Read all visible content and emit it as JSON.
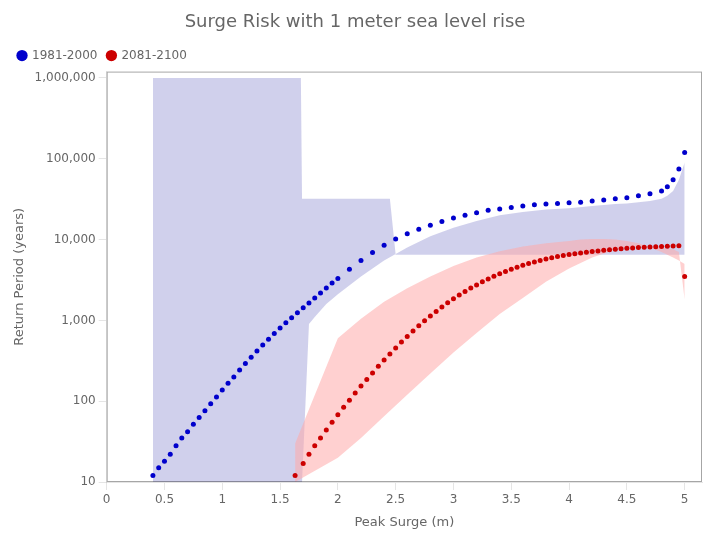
{
  "chart_data": {
    "type": "scatter",
    "title": "Surge Risk with 1 meter sea level rise",
    "x_label": "Peak Surge (m)",
    "y_label": "Return Period (years)",
    "log": "y",
    "grid": false,
    "legend": "upper left",
    "xlim": [
      0,
      5.15
    ],
    "ylim": [
      10,
      1200000
    ],
    "xticks": [
      0,
      0.5,
      1,
      1.5,
      2,
      2.5,
      3,
      3.5,
      4,
      4.5,
      5
    ],
    "yticks": [
      10,
      100,
      {
        "value": 1000,
        "label": "1,000"
      },
      {
        "value": 10000,
        "label": "10,000"
      },
      {
        "value": 100000,
        "label": "100,000"
      },
      {
        "value": 1000000,
        "label": "1,000,000"
      }
    ],
    "series": [
      {
        "name": "1981-2000",
        "color": "#0000CC",
        "marker": "dot",
        "x": [
          0.4,
          0.45,
          0.5,
          0.55,
          0.6,
          0.65,
          0.7,
          0.75,
          0.8,
          0.85,
          0.9,
          0.95,
          1.0,
          1.05,
          1.1,
          1.15,
          1.2,
          1.25,
          1.3,
          1.35,
          1.4,
          1.45,
          1.5,
          1.55,
          1.6,
          1.65,
          1.7,
          1.75,
          1.8,
          1.85,
          1.9,
          1.95,
          2.0,
          2.1,
          2.2,
          2.3,
          2.4,
          2.5,
          2.6,
          2.7,
          2.8,
          2.9,
          3.0,
          3.1,
          3.2,
          3.3,
          3.4,
          3.5,
          3.6,
          3.7,
          3.8,
          3.9,
          4.0,
          4.1,
          4.2,
          4.3,
          4.4,
          4.5,
          4.6,
          4.7,
          4.8,
          4.85,
          4.9,
          4.95,
          5.0
        ],
        "values": [
          12,
          15,
          18,
          22,
          28,
          35,
          42,
          52,
          63,
          76,
          93,
          113,
          138,
          167,
          200,
          244,
          293,
          350,
          418,
          495,
          585,
          688,
          805,
          935,
          1080,
          1240,
          1430,
          1640,
          1900,
          2190,
          2520,
          2900,
          3300,
          4300,
          5500,
          6900,
          8500,
          10200,
          11800,
          13400,
          15000,
          16800,
          18500,
          20000,
          21500,
          23000,
          24000,
          25000,
          26000,
          27000,
          27500,
          28000,
          28500,
          29000,
          30000,
          31000,
          32000,
          33000,
          35000,
          37000,
          40000,
          45000,
          55000,
          75000,
          120000
        ],
        "band": {
          "color": "#AAAADD",
          "upper": {
            "x": [
              0.4,
              1.68,
              1.69,
              1.75,
              2.45,
              2.5,
              2.55,
              3.0,
              4.5,
              4.6,
              4.65,
              4.7,
              4.75,
              4.8,
              4.85,
              4.9,
              4.95,
              5.0
            ],
            "values": [
              1000000,
              1000000,
              32000,
              32000,
              32000,
              6500,
              6500,
              6500,
              6500,
              6500,
              6500,
              6500,
              6500,
              6500,
              6500,
              6500,
              6500,
              6500
            ]
          },
          "lower": {
            "x": [
              0.4,
              1.68,
              1.69,
              1.75,
              1.8,
              1.9,
              2.0,
              2.2,
              2.4,
              2.6,
              2.8,
              3.0,
              3.2,
              3.4,
              3.6,
              3.8,
              4.0,
              4.2,
              4.4,
              4.5,
              4.6,
              4.7,
              4.8,
              4.85,
              4.9,
              4.95,
              5.0
            ],
            "values": [
              10,
              10,
              10,
              900,
              1100,
              1600,
              2100,
              3500,
              5500,
              8000,
              11000,
              14000,
              17000,
              20000,
              22000,
              23500,
              24500,
              26000,
              27500,
              28000,
              29000,
              30000,
              32000,
              35000,
              40000,
              55000,
              90000
            ]
          }
        }
      },
      {
        "name": "2081-2100",
        "color": "#CC0000",
        "marker": "dot",
        "x": [
          1.63,
          1.7,
          1.75,
          1.8,
          1.85,
          1.9,
          1.95,
          2.0,
          2.05,
          2.1,
          2.15,
          2.2,
          2.25,
          2.3,
          2.35,
          2.4,
          2.45,
          2.5,
          2.55,
          2.6,
          2.65,
          2.7,
          2.75,
          2.8,
          2.85,
          2.9,
          2.95,
          3.0,
          3.05,
          3.1,
          3.15,
          3.2,
          3.25,
          3.3,
          3.35,
          3.4,
          3.45,
          3.5,
          3.55,
          3.6,
          3.65,
          3.7,
          3.75,
          3.8,
          3.85,
          3.9,
          3.95,
          4.0,
          4.05,
          4.1,
          4.15,
          4.2,
          4.25,
          4.3,
          4.35,
          4.4,
          4.45,
          4.5,
          4.55,
          4.6,
          4.65,
          4.7,
          4.75,
          4.8,
          4.85,
          4.9,
          4.95,
          5.0
        ],
        "values": [
          12,
          17,
          22,
          28,
          35,
          44,
          55,
          68,
          84,
          103,
          126,
          154,
          186,
          224,
          270,
          323,
          385,
          457,
          540,
          634,
          740,
          858,
          990,
          1135,
          1293,
          1465,
          1650,
          1850,
          2060,
          2280,
          2510,
          2750,
          3000,
          3260,
          3520,
          3780,
          4040,
          4300,
          4560,
          4810,
          5060,
          5300,
          5530,
          5750,
          5960,
          6160,
          6350,
          6530,
          6700,
          6850,
          6990,
          7120,
          7250,
          7370,
          7490,
          7600,
          7700,
          7790,
          7880,
          7960,
          8030,
          8100,
          8160,
          8220,
          8280,
          8340,
          8400,
          3500
        ],
        "band": {
          "color": "#FFAAAA",
          "upper": {
            "x": [
              1.63,
              2.0,
              2.2,
              2.4,
              2.6,
              2.8,
              3.0,
              3.2,
              3.4,
              3.6,
              3.8,
              4.0,
              4.1,
              4.2,
              4.3,
              4.4,
              4.5,
              4.6,
              4.65,
              4.7,
              4.75,
              4.8,
              4.85,
              4.9,
              4.95,
              5.0
            ],
            "values": [
              30,
              600,
              1050,
              1700,
              2500,
              3500,
              4700,
              6000,
              7200,
              8200,
              9000,
              9600,
              10000,
              10200,
              10200,
              10000,
              9600,
              9000,
              8500,
              8000,
              7500,
              7000,
              6500,
              6000,
              5500,
              5000
            ]
          },
          "lower": {
            "x": [
              1.63,
              2.0,
              2.2,
              2.4,
              2.6,
              2.8,
              3.0,
              3.2,
              3.4,
              3.6,
              3.8,
              4.0,
              4.2,
              4.4,
              4.5,
              4.6,
              4.7,
              4.8,
              4.85,
              4.9,
              4.95,
              5.0
            ],
            "values": [
              10,
              20,
              35,
              65,
              120,
              220,
              400,
              700,
              1200,
              1900,
              3000,
              4400,
              6000,
              7500,
              8000,
              8200,
              8100,
              7900,
              7700,
              7600,
              7000,
              1800
            ]
          }
        }
      }
    ]
  }
}
